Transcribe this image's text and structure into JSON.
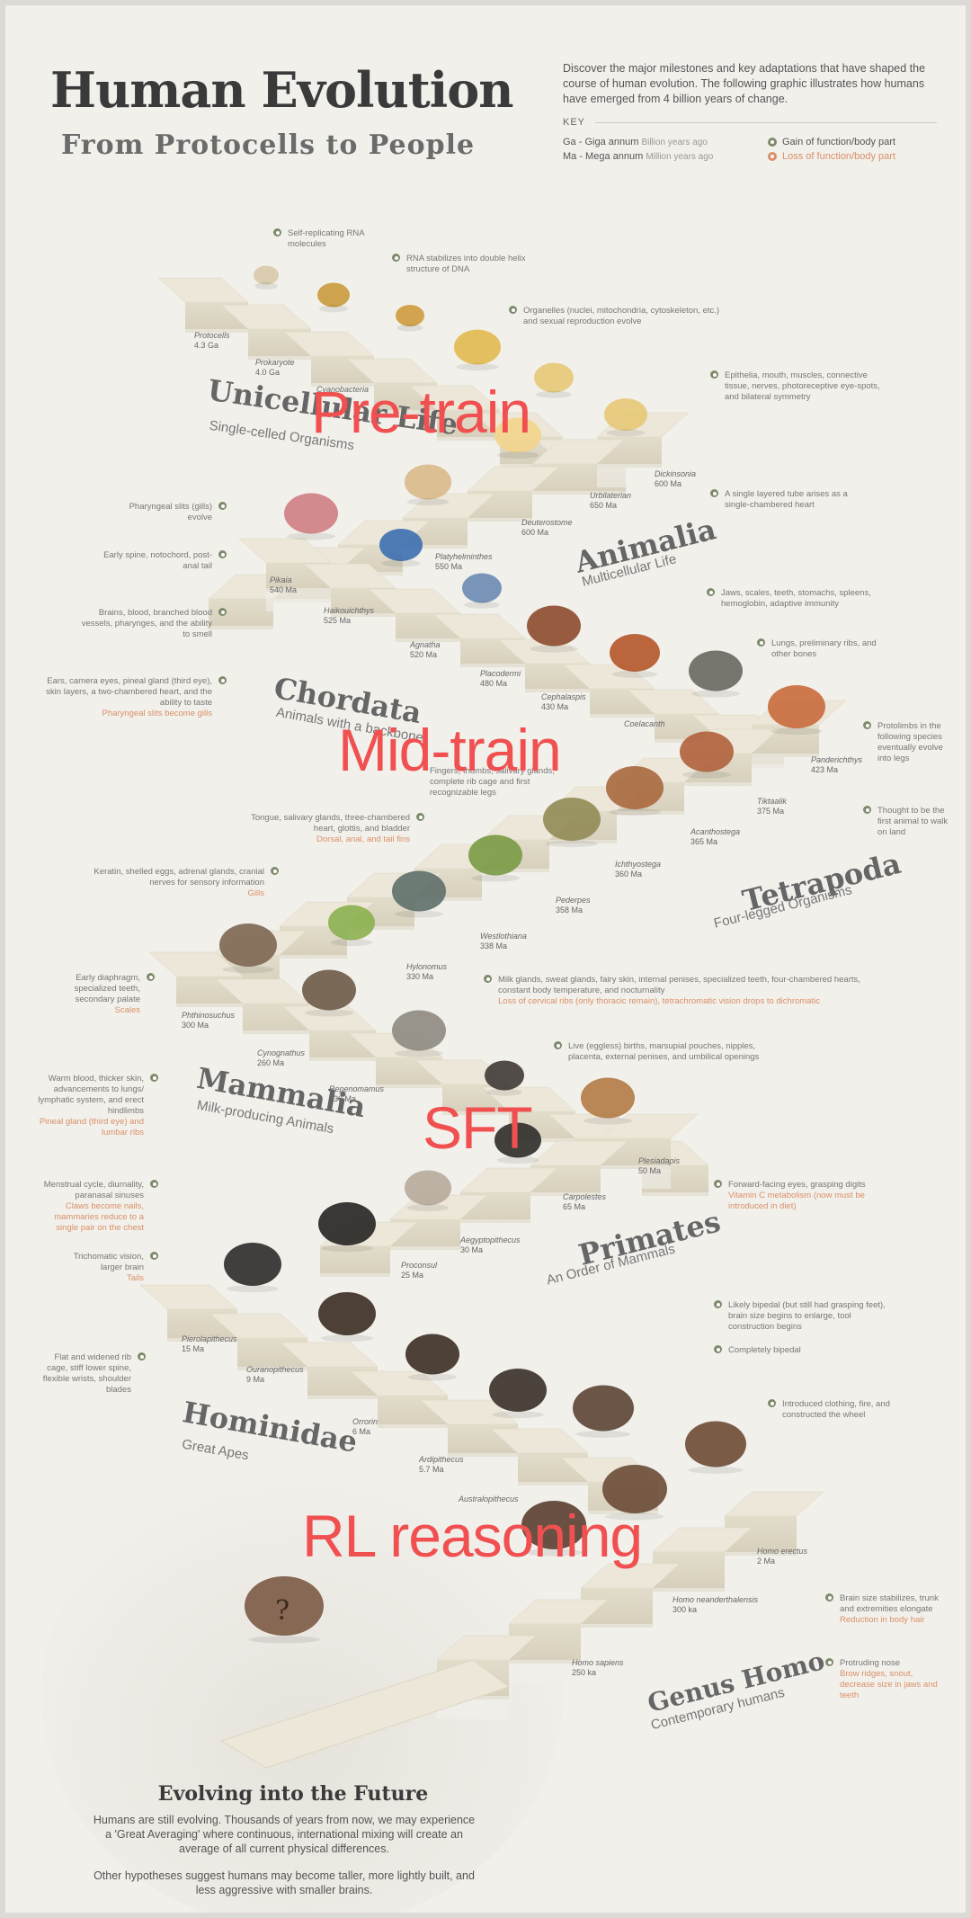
{
  "header": {
    "title": "Human Evolution",
    "subtitle": "From Protocells to People",
    "intro": "Discover the major milestones and key adaptations that have shaped the course of human evolution. The following graphic illustrates how humans have emerged from 4 billion years of change.",
    "key_title": "KEY",
    "key_ga": "Ga - Giga annum",
    "key_ga_desc": "Billion years ago",
    "key_ma": "Ma - Mega annum",
    "key_ma_desc": "Million years ago",
    "key_gain": "Gain of function/body part",
    "key_loss": "Loss of function/body part"
  },
  "colors": {
    "gain": "#7d8b6c",
    "loss": "#d98f68",
    "overlay": "#f05050"
  },
  "overlays": [
    "Pre-train",
    "Mid-train",
    "SFT",
    "RL reasoning"
  ],
  "stages": [
    {
      "name": "Unicellular Life",
      "sub": "Single-celled Organisms"
    },
    {
      "name": "Animalia",
      "sub": "Multicellular Life"
    },
    {
      "name": "Chordata",
      "sub": "Animals with a backbone"
    },
    {
      "name": "Tetrapoda",
      "sub": "Four-legged Organisms"
    },
    {
      "name": "Mammalia",
      "sub": "Milk-producing Animals"
    },
    {
      "name": "Primates",
      "sub": "An Order of Mammals"
    },
    {
      "name": "Hominidae",
      "sub": "Great Apes"
    },
    {
      "name": "Genus Homo",
      "sub": "Contemporary humans"
    }
  ],
  "steps": [
    {
      "name": "Protocells",
      "age": "4.3 Ga"
    },
    {
      "name": "Prokaryote",
      "age": "4.0 Ga"
    },
    {
      "name": "Cyanobacteria",
      "age": ""
    },
    {
      "name": "Dickinsonia",
      "age": "600 Ma"
    },
    {
      "name": "Urbilaterian",
      "age": "650 Ma"
    },
    {
      "name": "Deuterostome",
      "age": "600 Ma"
    },
    {
      "name": "Platyhelminthes",
      "age": "550 Ma"
    },
    {
      "name": "Pikaia",
      "age": "540 Ma"
    },
    {
      "name": "Haikouichthys",
      "age": "525 Ma"
    },
    {
      "name": "Agnatha",
      "age": "520 Ma"
    },
    {
      "name": "Placodermi",
      "age": "480 Ma"
    },
    {
      "name": "Cephalaspis",
      "age": "430 Ma"
    },
    {
      "name": "Coelacanth",
      "age": ""
    },
    {
      "name": "Panderichthys",
      "age": "423 Ma"
    },
    {
      "name": "Tiktaalik",
      "age": "375 Ma"
    },
    {
      "name": "Acanthostega",
      "age": "365 Ma"
    },
    {
      "name": "Ichthyostega",
      "age": "360 Ma"
    },
    {
      "name": "Pederpes",
      "age": "358 Ma"
    },
    {
      "name": "Westlothiana",
      "age": "338 Ma"
    },
    {
      "name": "Hylonomus",
      "age": "330 Ma"
    },
    {
      "name": "Phthinosuchus",
      "age": "300 Ma"
    },
    {
      "name": "Cynognathus",
      "age": "260 Ma"
    },
    {
      "name": "Repenomamus",
      "age": "230 Ma"
    },
    {
      "name": "Plesiadapis",
      "age": "50 Ma"
    },
    {
      "name": "Carpolestes",
      "age": "65 Ma"
    },
    {
      "name": "Aegyptopithecus",
      "age": "30 Ma"
    },
    {
      "name": "Proconsul",
      "age": "25 Ma"
    },
    {
      "name": "Pierolapithecus",
      "age": "15 Ma"
    },
    {
      "name": "Ouranopithecus",
      "age": "9 Ma"
    },
    {
      "name": "Orrorin",
      "age": "6 Ma"
    },
    {
      "name": "Ardipithecus",
      "age": "5.7 Ma"
    },
    {
      "name": "Australopithecus",
      "age": ""
    },
    {
      "name": "Homo erectus",
      "age": "2 Ma"
    },
    {
      "name": "Homo neanderthalensis",
      "age": "300 ka"
    },
    {
      "name": "Homo sapiens",
      "age": "250 ka"
    }
  ],
  "notes": {
    "n1": "Self-replicating RNA molecules",
    "n2": "RNA stabilizes into double helix structure of DNA",
    "n3": "Organelles (nuclei, mitochondria, cytoskeleton, etc.) and sexual reproduction evolve",
    "n4": "Epithelia, mouth, muscles, connective tissue, nerves, photoreceptive eye-spots, and bilateral symmetry",
    "n5": "A single layered tube arises as a single-chambered heart",
    "n6": "Pharyngeal slits (gills) evolve",
    "n7": "Early spine, notochord, post-anal tail",
    "n8": "Brains, blood, branched blood vessels, pharynges, and the ability to smell",
    "n9": "Ears, camera eyes, pineal gland (third eye), skin layers, a two-chambered heart, and the ability to taste",
    "n9_loss": "Pharyngeal slits become gills",
    "n10": "Jaws, scales, teeth, stomachs, spleens, hemoglobin, adaptive immunity",
    "n11": "Lungs, preliminary ribs, and other bones",
    "n12": "Protolimbs in the following species eventually evolve into legs",
    "n13": "Thought to be the first animal to walk on land",
    "n14": "Fingers, thumbs, salivary glands, complete rib cage and first recognizable legs",
    "n15": "Tongue, salivary glands, three-chambered heart, glottis, and bladder",
    "n15_loss": "Dorsal, anal, and tail fins",
    "n16": "Keratin, shelled eggs, adrenal glands, cranial nerves for sensory information",
    "n16_loss": "Gills",
    "n17": "Milk glands, sweat glands, fairy skin, internal penises, specialized teeth, four-chambered hearts, constant body temperature, and nocturnality",
    "n17_loss": "Loss of cervical ribs (only thoracic remain), tetrachromatic vision drops to dichromatic",
    "n18": "Early diaphragm, specialized teeth, secondary palate",
    "n18_loss": "Scales",
    "n19": "Live (eggless) births, marsupial pouches, nipples, placenta, external penises, and umbilical openings",
    "n20": "Warm blood, thicker skin, advancements to lungs/ lymphatic system, and erect hindlimbs",
    "n20_loss": "Pineal gland (third eye) and lumbar ribs",
    "n21": "Forward-facing eyes, grasping digits",
    "n21_loss": "Vitamin C metabolism (now must be introduced in diet)",
    "n22": "Menstrual cycle, diurnality, paranasal sinuses",
    "n22_loss": "Claws become nails, mammaries reduce to a single pair on the chest",
    "n23": "Trichomatic vision, larger brain",
    "n23_loss": "Tails",
    "n24": "Likely bipedal (but still had grasping feet), brain size begins to enlarge, tool construction begins",
    "n25": "Completely bipedal",
    "n26": "Flat and widened rib cage, stiff lower spine, flexible wrists, shoulder blades",
    "n27": "Introduced clothing, fire, and constructed the wheel",
    "n28": "Brain size stabilizes, trunk and extremities elongate",
    "n28_loss": "Reduction in body hair",
    "n29": "Protruding nose",
    "n29_loss": "Brow ridges, snout, decrease size in jaws and teeth"
  },
  "future": {
    "title": "Evolving into the Future",
    "p1": "Humans are still evolving. Thousands of years from now, we may experience a 'Great Averaging' where continuous, international mixing will create an average of all current physical differences.",
    "p2": "Other hypotheses suggest humans may become taller, more lightly built, and less aggressive with smaller brains."
  }
}
